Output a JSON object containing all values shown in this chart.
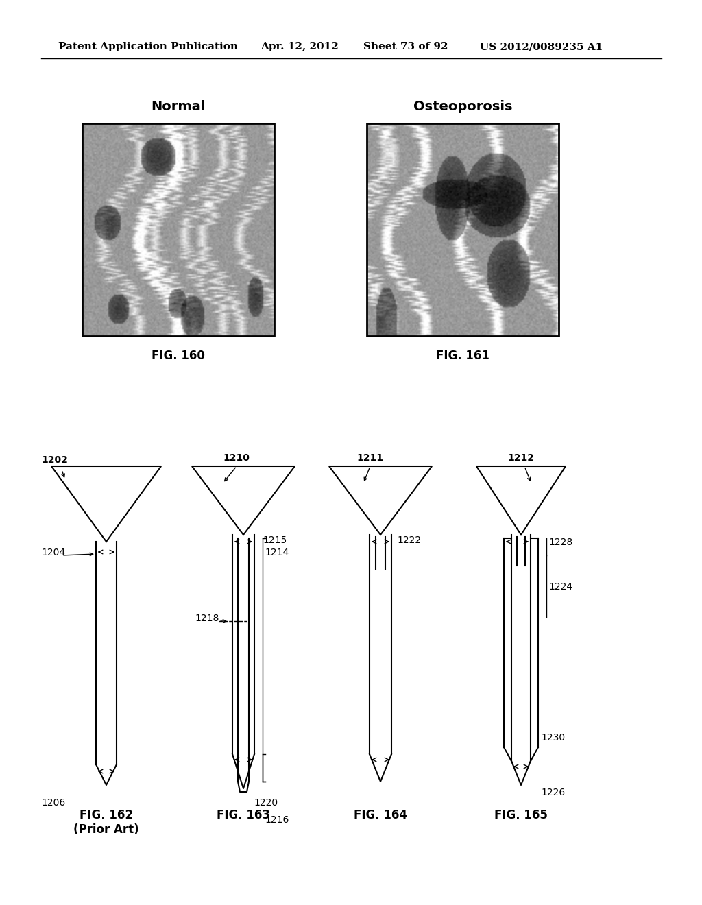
{
  "background_color": "#ffffff",
  "header_text": "Patent Application Publication",
  "header_date": "Apr. 12, 2012",
  "header_sheet": "Sheet 73 of 92",
  "header_patent": "US 2012/0089235 A1",
  "fig160_label": "FIG. 160",
  "fig161_label": "FIG. 161",
  "fig162_label": "FIG. 162\n(Prior Art)",
  "fig163_label": "FIG. 163",
  "fig164_label": "FIG. 164",
  "fig165_label": "FIG. 165",
  "normal_label": "Normal",
  "osteoporosis_label": "Osteoporosis",
  "ref_1202": "1202",
  "ref_1204": "1204",
  "ref_1206": "1206",
  "ref_1210": "1210",
  "ref_1211": "1211",
  "ref_1212": "1212",
  "ref_1214": "1214",
  "ref_1215": "1215",
  "ref_1216": "1216",
  "ref_1218": "1218",
  "ref_1220": "1220",
  "ref_1222": "1222",
  "ref_1224": "1224",
  "ref_1226": "1226",
  "ref_1228": "1228",
  "ref_1230": "1230"
}
